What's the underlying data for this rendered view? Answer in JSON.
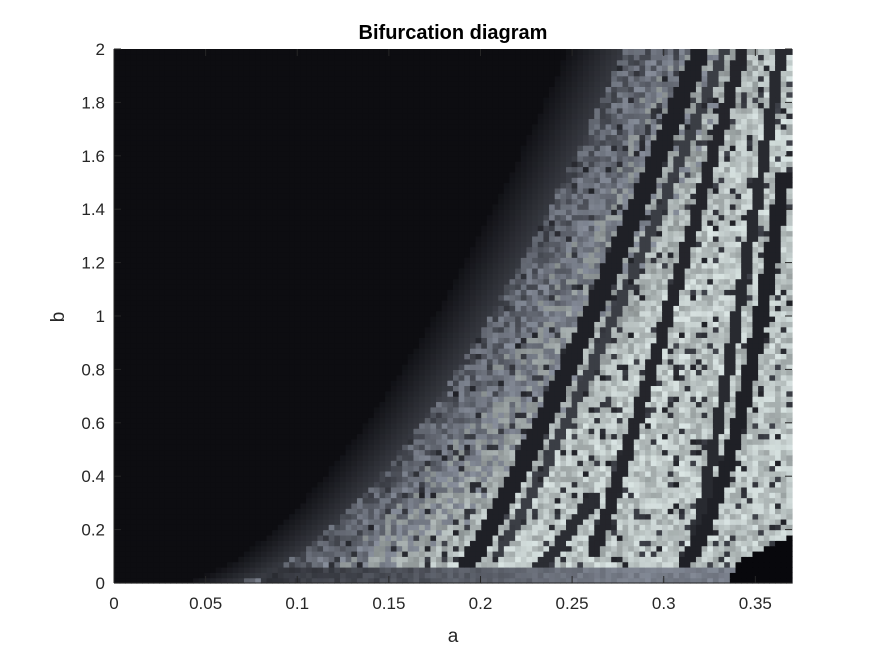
{
  "chart_data": {
    "type": "heatmap",
    "title": "Bifurcation diagram",
    "xlabel": "a",
    "ylabel": "b",
    "xlim": [
      0,
      0.37
    ],
    "ylim": [
      0,
      2
    ],
    "x_ticks": [
      0,
      0.05,
      0.1,
      0.15,
      0.2,
      0.25,
      0.3,
      0.35
    ],
    "x_tick_labels": [
      "0",
      "0.05",
      "0.1",
      "0.15",
      "0.2",
      "0.25",
      "0.3",
      "0.35"
    ],
    "y_ticks": [
      0,
      0.2,
      0.4,
      0.6,
      0.8,
      1,
      1.2,
      1.4,
      1.6,
      1.8,
      2
    ],
    "y_tick_labels": [
      "0",
      "0.2",
      "0.4",
      "0.6",
      "0.8",
      "1",
      "1.2",
      "1.4",
      "1.6",
      "1.8",
      "2"
    ],
    "grid": false,
    "colormap": "bone",
    "colors": {
      "dark": "#0a0a0d",
      "mid": "#5c5c78",
      "light": "#c8d8d8",
      "white": "#eef6f6"
    },
    "grid_resolution": {
      "nx": 120,
      "ny": 100
    }
  }
}
